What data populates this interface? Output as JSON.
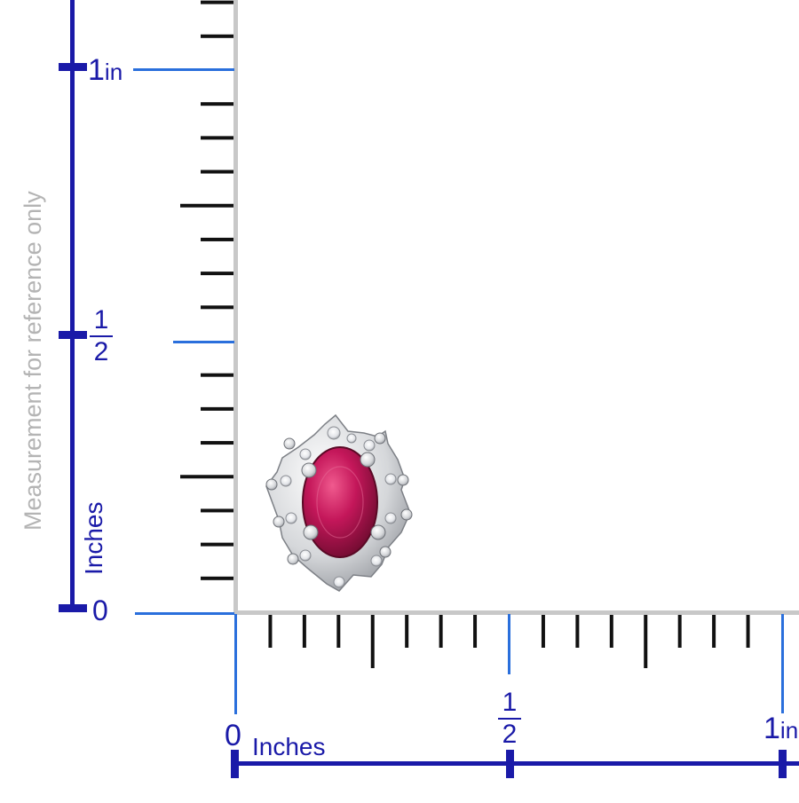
{
  "vertical_ruler": {
    "label_top": "1",
    "label_top_unit": "in",
    "label_half_num": "1",
    "label_half_den": "2",
    "label_zero": "0",
    "unit_label": "Inches"
  },
  "horizontal_ruler": {
    "label_zero": "0",
    "unit_label": "Inches",
    "label_half_num": "1",
    "label_half_den": "2",
    "label_one": "1",
    "label_one_unit": "in"
  },
  "side_note": "Measurement for reference only",
  "colors": {
    "scale_blue": "#1a1aa8",
    "inch_line_blue": "#2a6fdc",
    "ruler_edge_gray": "#c8c8c8",
    "tick_black": "#111111",
    "ruby": "#b8134d",
    "silver": "#d7d9dc"
  },
  "product": {
    "description_icon": "ruby-diamond-earring-icon"
  }
}
